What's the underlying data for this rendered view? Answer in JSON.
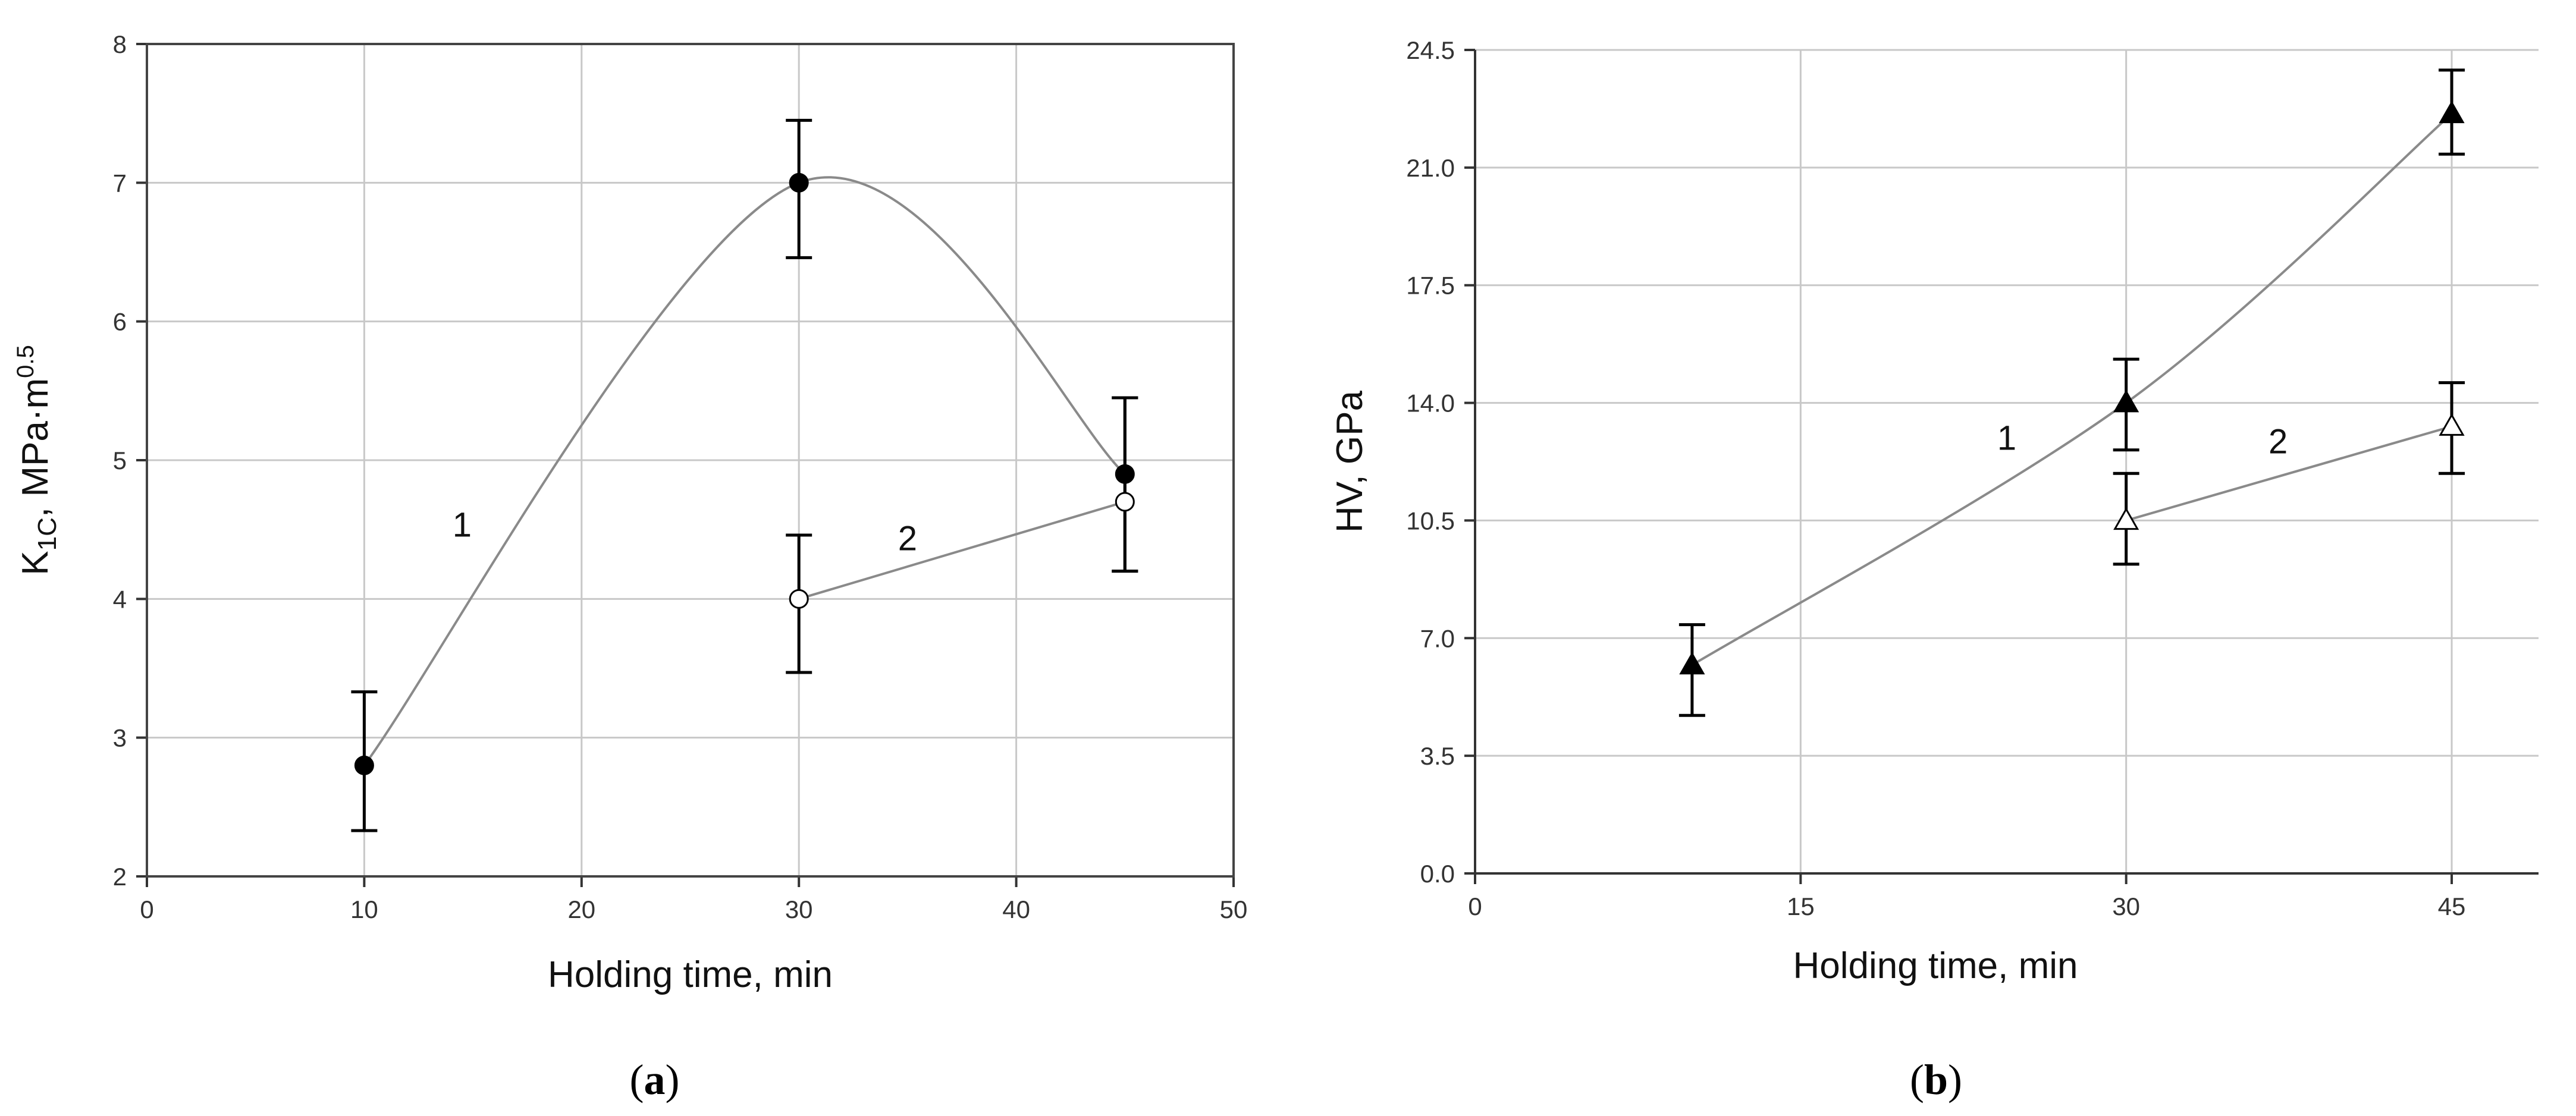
{
  "chart_data": [
    {
      "type": "line",
      "panel": "a",
      "caption_letter": "a",
      "xlabel": "Holding time, min",
      "ylabel_main": "K",
      "ylabel_sub": "1C",
      "ylabel_unit": ", MPa·m",
      "ylabel_sup": "0.5",
      "xlim": [
        0,
        50
      ],
      "ylim": [
        2,
        8
      ],
      "xticks": [
        "0",
        "10",
        "20",
        "30",
        "40",
        "50"
      ],
      "yticks": [
        "2",
        "3",
        "4",
        "5",
        "6",
        "7",
        "8"
      ],
      "grid": true,
      "series": [
        {
          "name": "1",
          "marker": "filled-circle",
          "curve": "smooth",
          "x": [
            10,
            30,
            45
          ],
          "y": [
            2.8,
            7.0,
            4.9
          ],
          "err_low": [
            2.33,
            6.46,
            4.2
          ],
          "err_high": [
            3.33,
            7.45,
            5.45
          ],
          "label_at": [
            14.5,
            4.45
          ]
        },
        {
          "name": "2",
          "marker": "open-circle",
          "curve": "straight",
          "x": [
            30,
            45
          ],
          "y": [
            4.0,
            4.7
          ],
          "err_low": [
            3.47,
            4.2
          ],
          "err_high": [
            4.46,
            5.45
          ],
          "label_at": [
            35,
            4.35
          ]
        }
      ]
    },
    {
      "type": "line",
      "panel": "b",
      "caption_letter": "b",
      "xlabel": "Holding time, min",
      "ylabel": "HV, GPa",
      "xlim": [
        0,
        49
      ],
      "ylim": [
        0,
        24.5
      ],
      "xticks": [
        "0",
        "15",
        "30",
        "45"
      ],
      "yticks": [
        "0.0",
        "3.5",
        "7.0",
        "10.5",
        "14.0",
        "17.5",
        "21.0",
        "24.5"
      ],
      "grid": true,
      "series": [
        {
          "name": "1",
          "marker": "filled-triangle",
          "curve": "smooth",
          "x": [
            10,
            30,
            45
          ],
          "y": [
            6.2,
            14.0,
            22.6
          ],
          "err_low": [
            4.7,
            12.6,
            21.4
          ],
          "err_high": [
            7.4,
            15.3,
            23.9
          ],
          "label_at": [
            24.5,
            12.6
          ]
        },
        {
          "name": "2",
          "marker": "open-triangle",
          "curve": "straight",
          "x": [
            30,
            45
          ],
          "y": [
            10.5,
            13.3
          ],
          "err_low": [
            9.2,
            11.9
          ],
          "err_high": [
            11.9,
            14.6
          ],
          "label_at": [
            37,
            12.5
          ]
        }
      ]
    }
  ]
}
